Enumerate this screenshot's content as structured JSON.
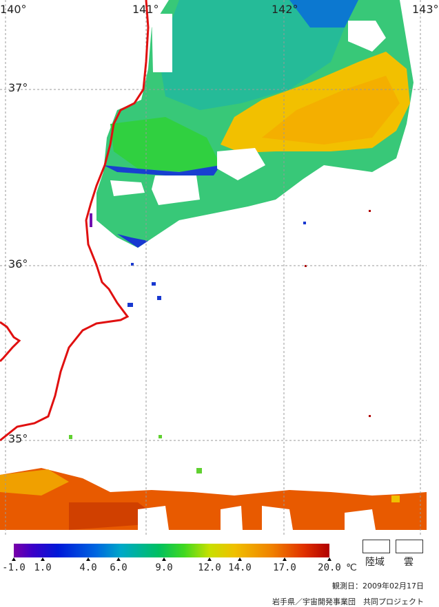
{
  "map": {
    "lon_labels": [
      "140°",
      "141°",
      "142°",
      "143°"
    ],
    "lat_labels": [
      "37°",
      "36°",
      "35°"
    ]
  },
  "colorbar": {
    "ticks": [
      "-1.0",
      "1.0",
      "4.0",
      "6.0",
      "9.0",
      "12.0",
      "14.0",
      "17.0",
      "20.0"
    ],
    "unit": "℃"
  },
  "legend": {
    "land_label": "陸域",
    "cloud_label": "雲"
  },
  "footer": {
    "observation_date": "観測日：2009年02月17日",
    "credit": "岩手県／宇宙開発事業団　共同プロジェクト"
  },
  "colors": {
    "coastline": "#e01010",
    "grid": "#999999"
  }
}
